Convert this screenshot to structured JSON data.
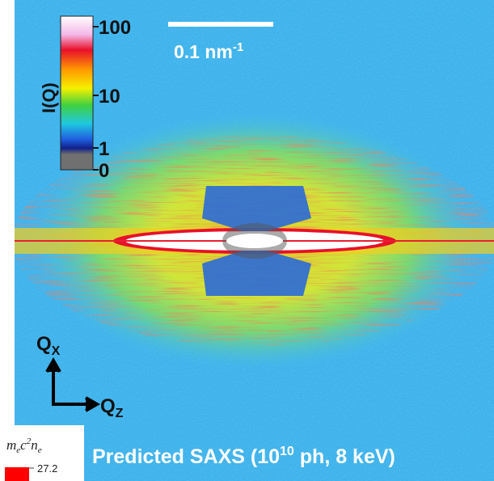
{
  "colorbar": {
    "label": "I(Q)",
    "ticks": [
      "100",
      "10",
      "1",
      "0"
    ]
  },
  "scale_bar": {
    "text": "0.1 nm",
    "superscript": "-1"
  },
  "axes": {
    "vertical": {
      "main": "Q",
      "sub": "X"
    },
    "horizontal": {
      "main": "Q",
      "sub": "Z"
    }
  },
  "caption": {
    "before": "Predicted SAXS (10",
    "superscript": "10",
    "after": " ph, 8 keV)"
  },
  "inset": {
    "label": {
      "m": "m",
      "m_sub": "e",
      "c": "c",
      "c_sup": "2",
      "n": "n",
      "n_sub": "e"
    },
    "value": "27.2"
  }
}
